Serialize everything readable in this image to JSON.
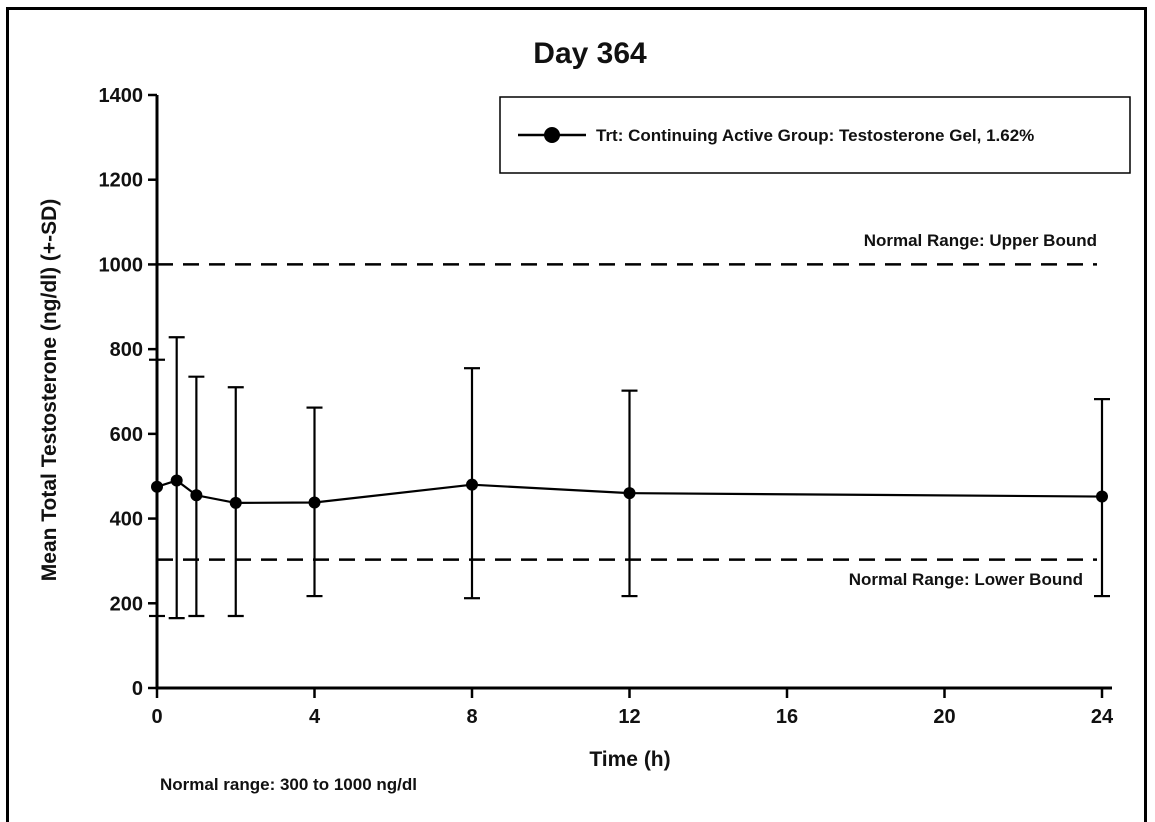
{
  "chart_data": {
    "type": "line",
    "title": "Day 364",
    "xlabel": "Time (h)",
    "ylabel": "Mean Total Testosterone (ng/dl) (+-SD)",
    "xlim": [
      0,
      24
    ],
    "ylim": [
      0,
      1400
    ],
    "xticks": [
      0,
      4,
      8,
      12,
      16,
      20,
      24
    ],
    "yticks": [
      0,
      200,
      400,
      600,
      800,
      1000,
      1200,
      1400
    ],
    "legend_position": "top-right",
    "series": [
      {
        "name": "Trt: Continuing Active Group: Testosterone Gel, 1.62%",
        "color": "#000000",
        "marker": "filled-circle",
        "points": [
          {
            "x": 0,
            "y": 475,
            "sd_upper": 775,
            "sd_lower": 170
          },
          {
            "x": 0.5,
            "y": 490,
            "sd_upper": 828,
            "sd_lower": 165
          },
          {
            "x": 1,
            "y": 455,
            "sd_upper": 735,
            "sd_lower": 170
          },
          {
            "x": 2,
            "y": 437,
            "sd_upper": 710,
            "sd_lower": 170
          },
          {
            "x": 4,
            "y": 438,
            "sd_upper": 662,
            "sd_lower": 217
          },
          {
            "x": 8,
            "y": 480,
            "sd_upper": 755,
            "sd_lower": 212
          },
          {
            "x": 12,
            "y": 460,
            "sd_upper": 702,
            "sd_lower": 217
          },
          {
            "x": 24,
            "y": 452,
            "sd_upper": 682,
            "sd_lower": 217
          }
        ]
      }
    ],
    "reference_lines": [
      {
        "y": 1000,
        "style": "dashed",
        "label": "Normal Range: Upper Bound"
      },
      {
        "y": 303,
        "style": "dashed",
        "label": "Normal Range: Lower Bound"
      }
    ],
    "footnote": "Normal range: 300 to 1000 ng/dl"
  }
}
